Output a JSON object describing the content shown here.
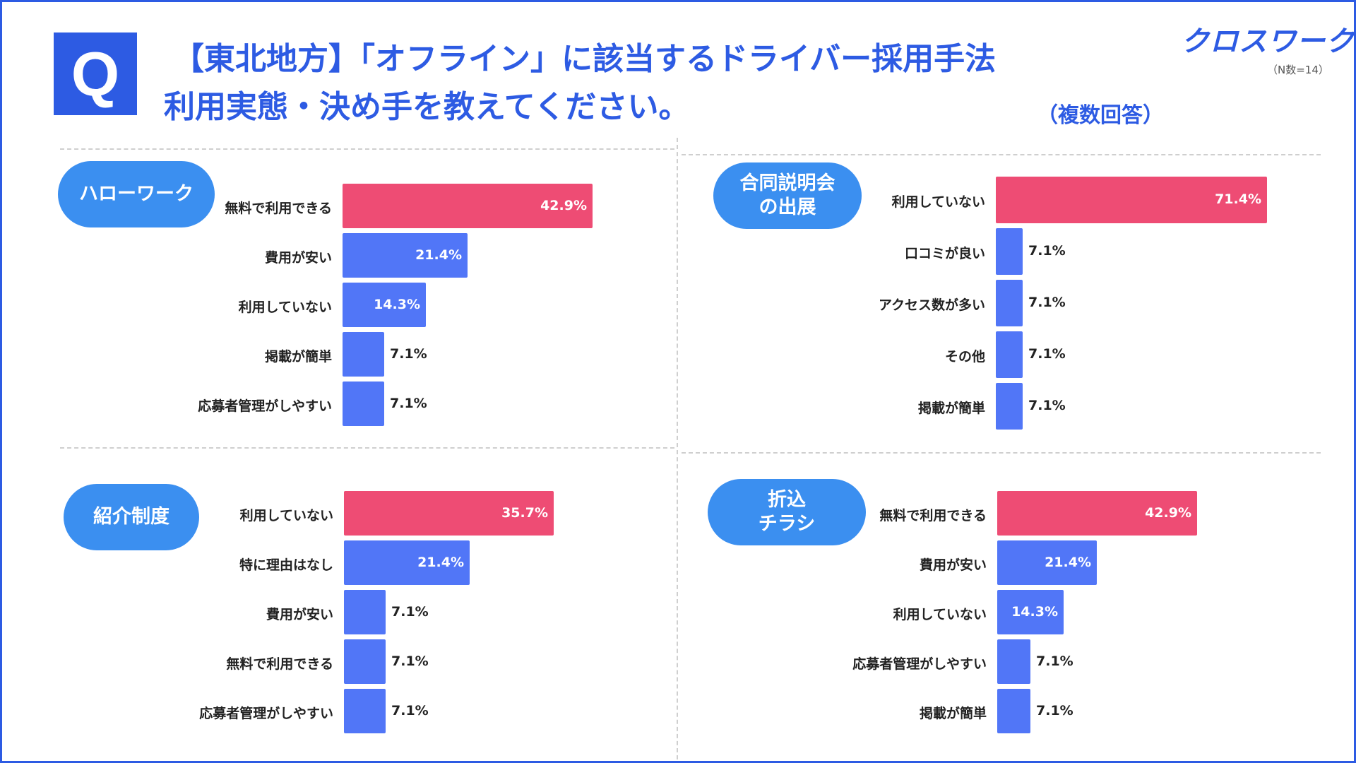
{
  "header": {
    "q_letter": "Q",
    "title_line1": "【東北地方】「オフライン」に該当するドライバー採用手法",
    "title_line2": "利用実態・決め手を教えてください。",
    "multi_answer": "（複数回答）",
    "brand": "クロスワーク",
    "n_note": "（N数=14）"
  },
  "colors": {
    "accent": "#2d5be3",
    "top_bar": "#ee4c74",
    "bar": "#5176f7",
    "pill": "#3b8ff0"
  },
  "chart_data": [
    {
      "type": "bar",
      "orientation": "horizontal",
      "title": "ハローワーク",
      "categories": [
        "無料で利用できる",
        "費用が安い",
        "利用していない",
        "掲載が簡単",
        "応募者管理がしやすい"
      ],
      "values": [
        42.9,
        21.4,
        14.3,
        7.1,
        7.1
      ],
      "labels": [
        "42.9%",
        "21.4%",
        "14.3%",
        "7.1%",
        "7.1%"
      ],
      "unit": "%"
    },
    {
      "type": "bar",
      "orientation": "horizontal",
      "title": "合同説明会\nの出展",
      "categories": [
        "利用していない",
        "口コミが良い",
        "アクセス数が多い",
        "その他",
        "掲載が簡単"
      ],
      "values": [
        71.4,
        7.1,
        7.1,
        7.1,
        7.1
      ],
      "labels": [
        "71.4%",
        "7.1%",
        "7.1%",
        "7.1%",
        "7.1%"
      ],
      "unit": "%"
    },
    {
      "type": "bar",
      "orientation": "horizontal",
      "title": "紹介制度",
      "categories": [
        "利用していない",
        "特に理由はなし",
        "費用が安い",
        "無料で利用できる",
        "応募者管理がしやすい"
      ],
      "values": [
        35.7,
        21.4,
        7.1,
        7.1,
        7.1
      ],
      "labels": [
        "35.7%",
        "21.4%",
        "7.1%",
        "7.1%",
        "7.1%"
      ],
      "unit": "%"
    },
    {
      "type": "bar",
      "orientation": "horizontal",
      "title": "折込\nチラシ",
      "categories": [
        "無料で利用できる",
        "費用が安い",
        "利用していない",
        "応募者管理がしやすい",
        "掲載が簡単"
      ],
      "values": [
        42.9,
        21.4,
        14.3,
        7.1,
        7.1
      ],
      "labels": [
        "42.9%",
        "21.4%",
        "14.3%",
        "7.1%",
        "7.1%"
      ],
      "unit": "%"
    }
  ]
}
